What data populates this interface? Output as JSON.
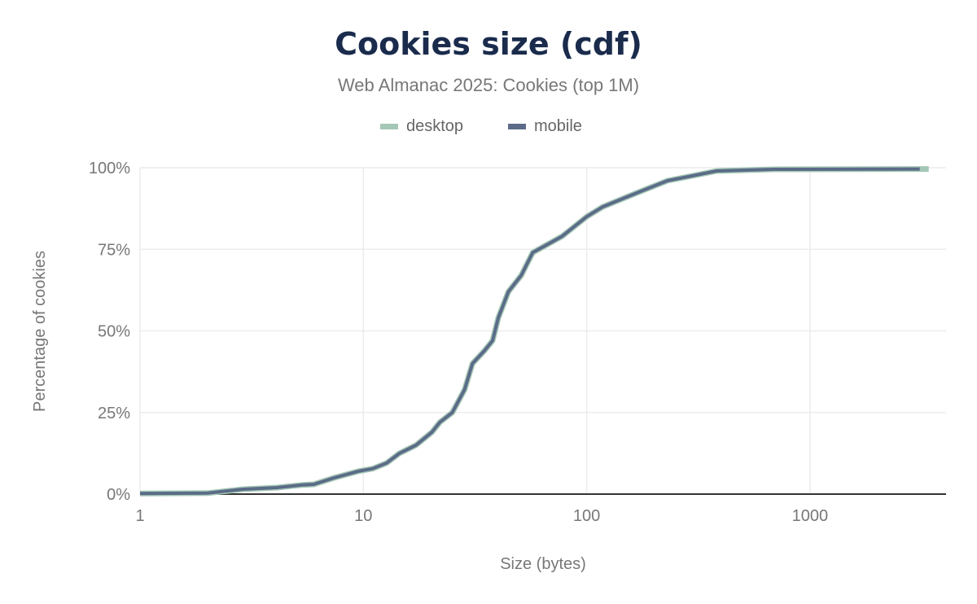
{
  "chart_data": {
    "type": "line",
    "title": "Cookies size (cdf)",
    "subtitle": "Web Almanac 2025: Cookies (top 1M)",
    "xlabel": "Size (bytes)",
    "ylabel": "Percentage of cookies",
    "x_scale": "log",
    "xlim": [
      1,
      4000
    ],
    "ylim": [
      0,
      100
    ],
    "x_ticks": [
      "1",
      "10",
      "100",
      "1000"
    ],
    "y_ticks": [
      "0%",
      "25%",
      "50%",
      "75%",
      "100%"
    ],
    "grid": true,
    "legend": "top",
    "colors": {
      "desktop": "#a5c8b6",
      "mobile": "#5b6b88"
    },
    "series": [
      {
        "name": "desktop",
        "x": [
          1,
          2,
          2.9,
          4.1,
          5.3,
          6,
          7.4,
          9.5,
          11,
          12.7,
          14.5,
          17.2,
          20.3,
          22,
          25,
          28.4,
          30.8,
          34.9,
          37.9,
          40.2,
          44.6,
          50.9,
          57.3,
          64.8,
          77.7,
          100,
          118,
          139,
          178,
          230,
          297,
          382,
          690,
          3400
        ],
        "y": [
          0.2,
          0.3,
          1.5,
          2,
          2.8,
          3,
          5,
          7,
          7.8,
          9.5,
          12.5,
          15,
          19,
          22,
          25,
          32,
          40,
          44,
          47,
          54,
          62,
          67,
          74,
          76,
          79,
          85,
          88,
          90,
          93,
          96,
          97.5,
          99,
          99.5,
          99.6
        ]
      },
      {
        "name": "mobile",
        "x": [
          1,
          2,
          2.9,
          4.1,
          5.3,
          6,
          7.4,
          9.5,
          11,
          12.7,
          14.5,
          17.2,
          20.3,
          22,
          25,
          28.4,
          30.8,
          34.9,
          37.9,
          40.2,
          44.6,
          50.9,
          57.3,
          64.8,
          77.7,
          100,
          118,
          139,
          178,
          230,
          297,
          382,
          690,
          3100
        ],
        "y": [
          0.2,
          0.3,
          1.5,
          2,
          2.8,
          3,
          5,
          7,
          7.8,
          9.5,
          12.5,
          15,
          19,
          22,
          25,
          32,
          40,
          44,
          47,
          54,
          62,
          67,
          74,
          76,
          79,
          85,
          88,
          90,
          93,
          96,
          97.5,
          99,
          99.5,
          99.6
        ]
      }
    ]
  }
}
